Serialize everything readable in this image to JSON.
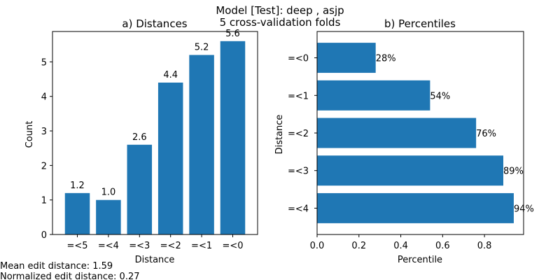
{
  "figure": {
    "suptitle": [
      "Model [Test]: deep , asjp",
      "5 cross-validation folds"
    ],
    "notes": [
      "Mean edit distance: 1.59",
      "Normalized edit distance: 0.27"
    ]
  },
  "chart_data": [
    {
      "type": "bar",
      "title": "a) Distances",
      "xlabel": "Distance",
      "ylabel": "Count",
      "categories": [
        "=<5",
        "=<4",
        "=<3",
        "=<2",
        "=<1",
        "=<0"
      ],
      "values": [
        1.2,
        1.0,
        2.6,
        4.4,
        5.2,
        5.6
      ],
      "data_labels": [
        "1.2",
        "1.0",
        "2.6",
        "4.4",
        "5.2",
        "5.6"
      ],
      "ylim": [
        0,
        5.88
      ],
      "yticks": [
        0,
        1,
        2,
        3,
        4,
        5
      ],
      "color": "#1f77b4",
      "grid": false
    },
    {
      "type": "bar",
      "orientation": "horizontal",
      "title": "b) Percentiles",
      "xlabel": "Percentile",
      "ylabel": "Distance",
      "categories": [
        "=<0",
        "=<1",
        "=<2",
        "=<3",
        "=<4"
      ],
      "values": [
        0.28,
        0.54,
        0.76,
        0.89,
        0.94
      ],
      "data_labels": [
        "28%",
        "54%",
        "76%",
        "89%",
        "94%"
      ],
      "xlim": [
        0,
        0.987
      ],
      "xticks": [
        "0.0",
        "0.2",
        "0.4",
        "0.6",
        "0.8"
      ],
      "color": "#1f77b4",
      "grid": false
    }
  ]
}
